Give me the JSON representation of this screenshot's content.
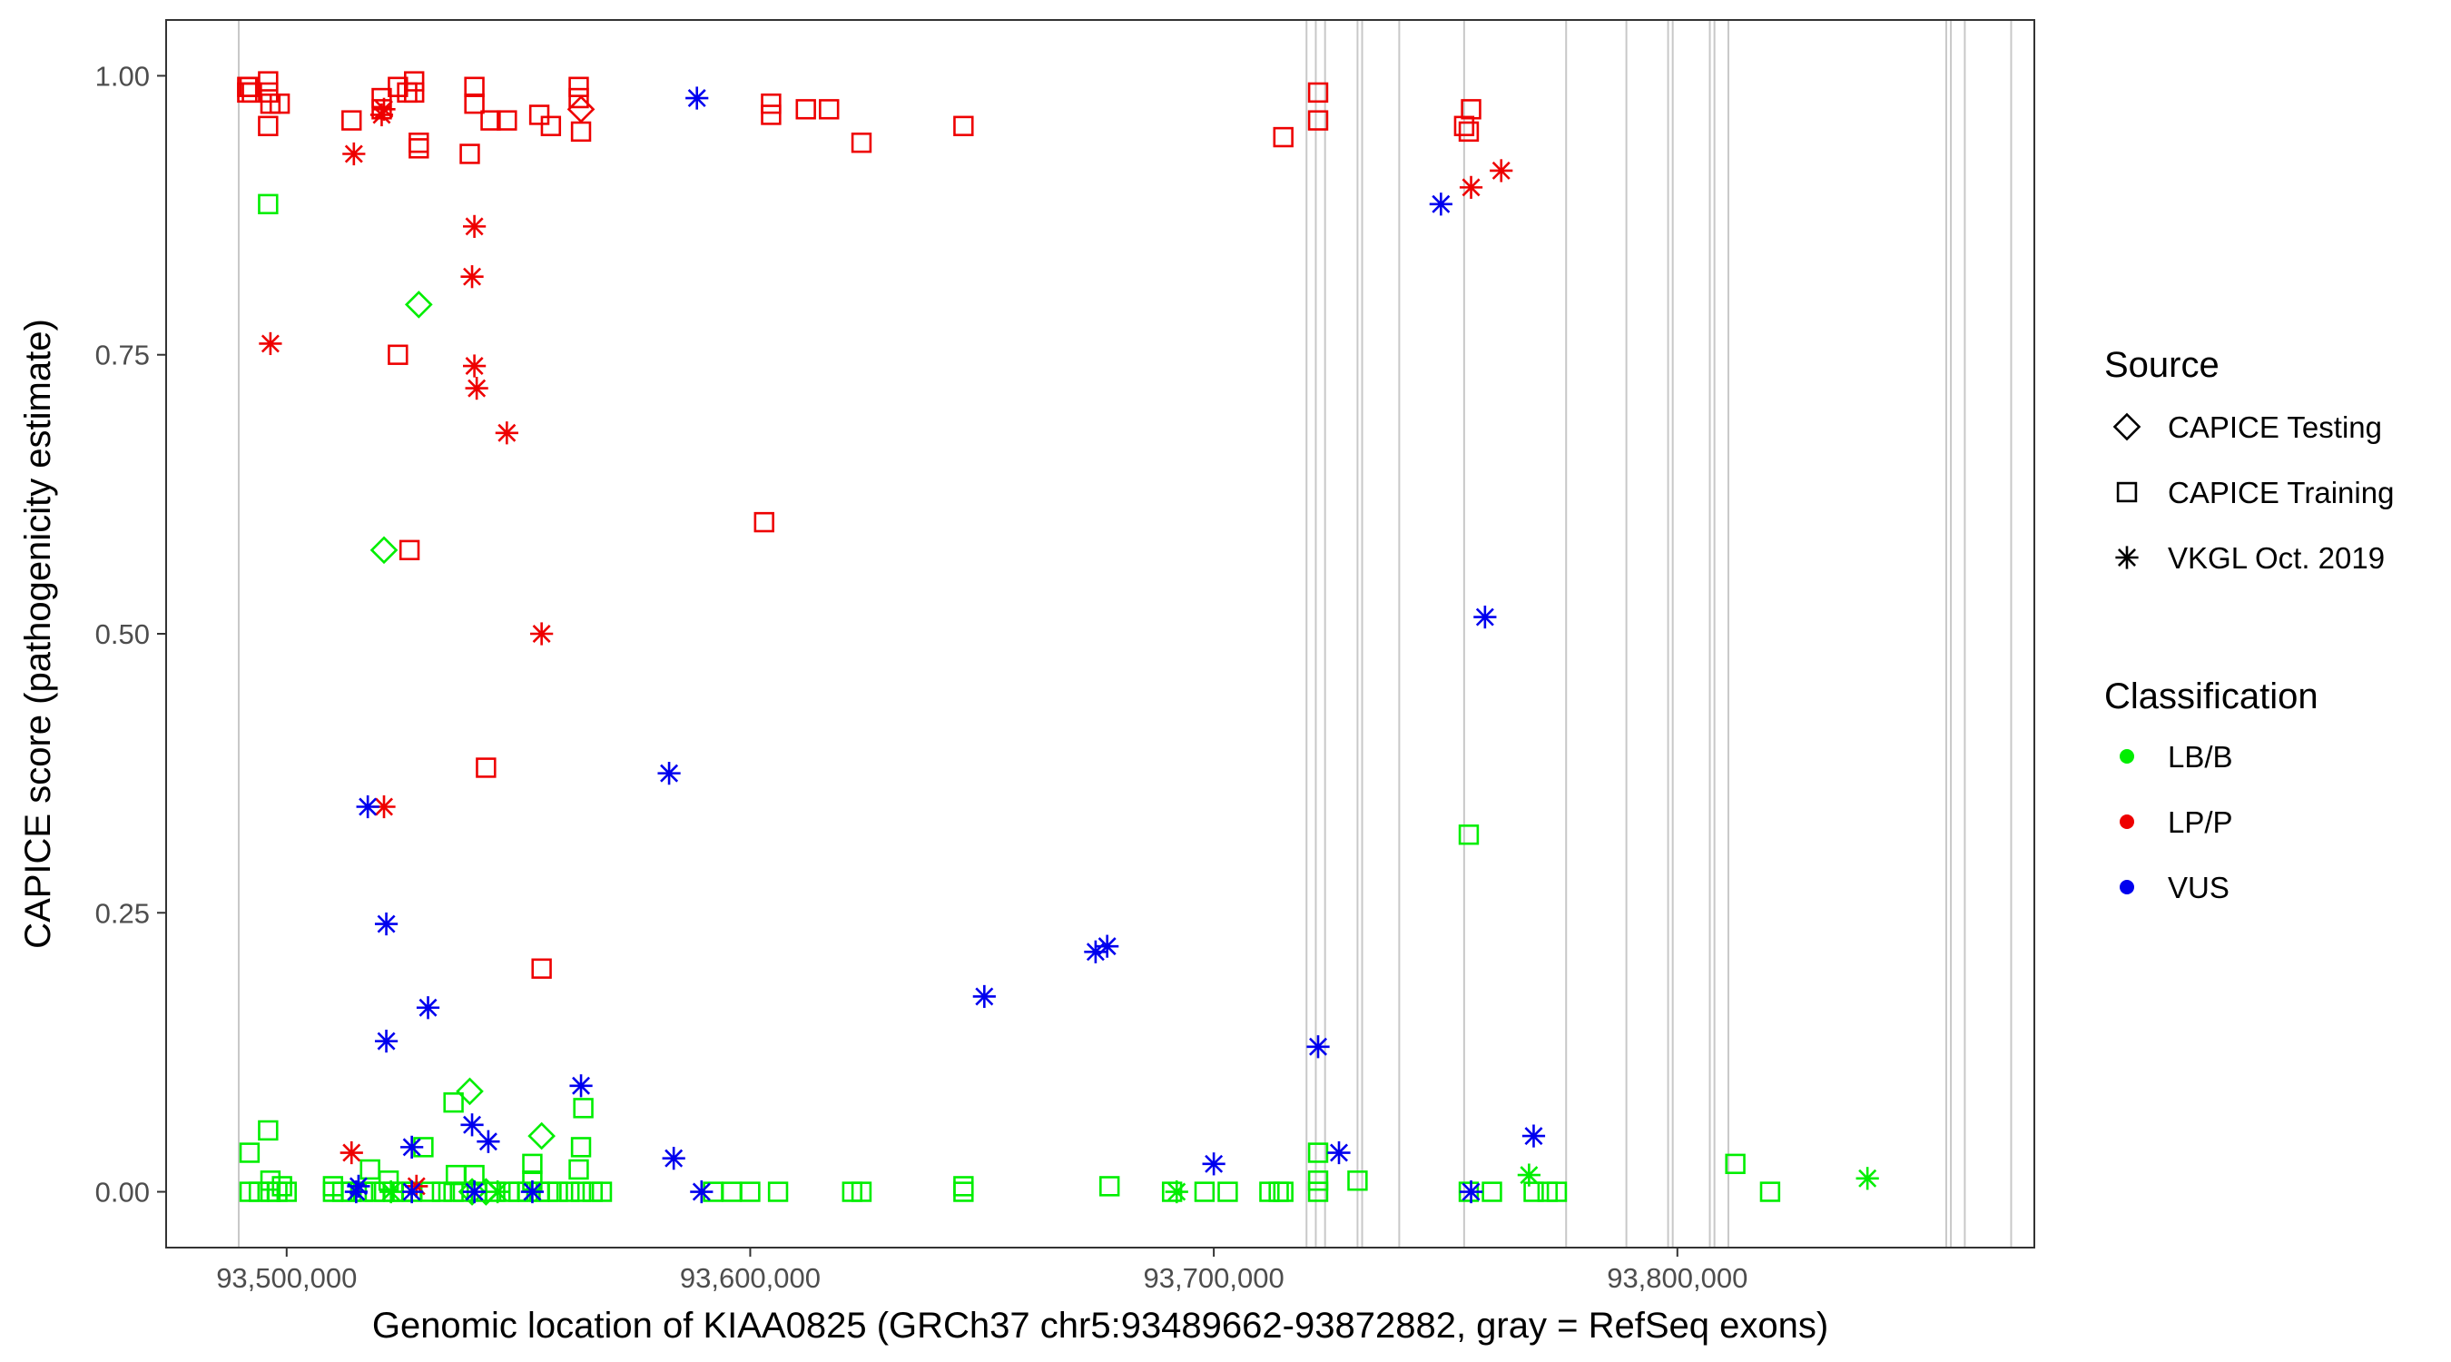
{
  "chart_data": {
    "type": "scatter",
    "xlabel": "Genomic location of KIAA0825 (GRCh37 chr5:93489662-93872882, gray = RefSeq exons)",
    "ylabel": "CAPICE score (pathogenicity estimate)",
    "xlim": [
      93474000,
      93877000
    ],
    "ylim": [
      -0.05,
      1.05
    ],
    "x_ticks": [
      {
        "value": 93500000,
        "label": "93,500,000"
      },
      {
        "value": 93600000,
        "label": "93,600,000"
      },
      {
        "value": 93700000,
        "label": "93,700,000"
      },
      {
        "value": 93800000,
        "label": "93,800,000"
      }
    ],
    "y_ticks": [
      {
        "value": 0.0,
        "label": "0.00"
      },
      {
        "value": 0.25,
        "label": "0.25"
      },
      {
        "value": 0.5,
        "label": "0.50"
      },
      {
        "value": 0.75,
        "label": "0.75"
      },
      {
        "value": 1.0,
        "label": "1.00"
      }
    ],
    "grid": false,
    "exons": [
      93489662,
      93720000,
      93722000,
      93724000,
      93731000,
      93732000,
      93740000,
      93754000,
      93776000,
      93789000,
      93798000,
      93799000,
      93807000,
      93808000,
      93811000,
      93858000,
      93859000,
      93862000,
      93872000
    ],
    "legend": {
      "placement": "right",
      "source": {
        "title": "Source",
        "items": [
          {
            "label": "CAPICE Testing",
            "shape": "diamond"
          },
          {
            "label": "CAPICE Training",
            "shape": "square"
          },
          {
            "label": "VKGL Oct. 2019",
            "shape": "asterisk"
          }
        ]
      },
      "classification": {
        "title": "Classification",
        "items": [
          {
            "label": "LB/B",
            "color": "#00ee00"
          },
          {
            "label": "LP/P",
            "color": "#ee0000"
          },
          {
            "label": "VUS",
            "color": "#0000ee"
          }
        ]
      }
    },
    "colors": {
      "LB/B": "#00ee00",
      "LP/P": "#ee0000",
      "VUS": "#0000ee",
      "exon": "#c8c8c8"
    },
    "series": [
      {
        "source": "CAPICE Training",
        "class": "LP/P",
        "points": [
          [
            93491500,
            0.99
          ],
          [
            93491500,
            0.985
          ],
          [
            93492000,
            0.99
          ],
          [
            93492500,
            0.985
          ],
          [
            93496000,
            0.995
          ],
          [
            93496000,
            0.985
          ],
          [
            93496500,
            0.975
          ],
          [
            93496000,
            0.955
          ],
          [
            93498500,
            0.975
          ],
          [
            93514000,
            0.96
          ],
          [
            93520500,
            0.98
          ],
          [
            93520500,
            0.97
          ],
          [
            93524000,
            0.99
          ],
          [
            93526000,
            0.985
          ],
          [
            93527500,
            0.995
          ],
          [
            93527500,
            0.985
          ],
          [
            93528500,
            0.94
          ],
          [
            93528500,
            0.935
          ],
          [
            93539500,
            0.93
          ],
          [
            93540500,
            0.99
          ],
          [
            93540500,
            0.975
          ],
          [
            93544000,
            0.96
          ],
          [
            93547500,
            0.96
          ],
          [
            93554500,
            0.965
          ],
          [
            93557000,
            0.955
          ],
          [
            93563000,
            0.99
          ],
          [
            93563000,
            0.98
          ],
          [
            93563500,
            0.95
          ],
          [
            93604500,
            0.975
          ],
          [
            93604500,
            0.965
          ],
          [
            93612000,
            0.97
          ],
          [
            93617000,
            0.97
          ],
          [
            93624000,
            0.94
          ],
          [
            93646000,
            0.955
          ],
          [
            93715000,
            0.945
          ],
          [
            93722500,
            0.985
          ],
          [
            93722500,
            0.96
          ],
          [
            93754000,
            0.955
          ],
          [
            93755500,
            0.97
          ],
          [
            93755000,
            0.95
          ],
          [
            93524000,
            0.75
          ],
          [
            93526500,
            0.575
          ],
          [
            93603000,
            0.6
          ],
          [
            93543000,
            0.38
          ],
          [
            93555000,
            0.2
          ]
        ]
      },
      {
        "source": "CAPICE Testing",
        "class": "LP/P",
        "points": [
          [
            93563500,
            0.97
          ]
        ]
      },
      {
        "source": "CAPICE Testing",
        "class": "LB/B",
        "points": [
          [
            93528500,
            0.795
          ],
          [
            93521000,
            0.575
          ],
          [
            93539500,
            0.09
          ],
          [
            93555000,
            0.05
          ],
          [
            93540000,
            0.0
          ],
          [
            93543000,
            0.0
          ]
        ]
      },
      {
        "source": "CAPICE Training",
        "class": "LB/B",
        "points": [
          [
            93496000,
            0.885
          ],
          [
            93755000,
            0.32
          ],
          [
            93492000,
            0.035
          ],
          [
            93496000,
            0.055
          ],
          [
            93496500,
            0.01
          ],
          [
            93499000,
            0.005
          ],
          [
            93510000,
            0.005
          ],
          [
            93518000,
            0.02
          ],
          [
            93522000,
            0.01
          ],
          [
            93529500,
            0.04
          ],
          [
            93536000,
            0.08
          ],
          [
            93536500,
            0.015
          ],
          [
            93540500,
            0.015
          ],
          [
            93553000,
            0.025
          ],
          [
            93553000,
            0.01
          ],
          [
            93563500,
            0.04
          ],
          [
            93564000,
            0.075
          ],
          [
            93563000,
            0.02
          ],
          [
            93722500,
            0.035
          ],
          [
            93722500,
            0.01
          ],
          [
            93731000,
            0.01
          ],
          [
            93812500,
            0.025
          ],
          [
            93646000,
            0.005
          ],
          [
            93677500,
            0.005
          ],
          [
            93492000,
            0.0
          ],
          [
            93494000,
            0.0
          ],
          [
            93496500,
            0.0
          ],
          [
            93498000,
            0.0
          ],
          [
            93500000,
            0.0
          ],
          [
            93510000,
            0.0
          ],
          [
            93512000,
            0.0
          ],
          [
            93514000,
            0.0
          ],
          [
            93516500,
            0.0
          ],
          [
            93519000,
            0.0
          ],
          [
            93521000,
            0.0
          ],
          [
            93523000,
            0.0
          ],
          [
            93525000,
            0.0
          ],
          [
            93527000,
            0.0
          ],
          [
            93531000,
            0.0
          ],
          [
            93533500,
            0.0
          ],
          [
            93536000,
            0.0
          ],
          [
            93538000,
            0.0
          ],
          [
            93541000,
            0.0
          ],
          [
            93545000,
            0.0
          ],
          [
            93548000,
            0.0
          ],
          [
            93550000,
            0.0
          ],
          [
            93552000,
            0.0
          ],
          [
            93554500,
            0.0
          ],
          [
            93556500,
            0.0
          ],
          [
            93558500,
            0.0
          ],
          [
            93561000,
            0.0
          ],
          [
            93563500,
            0.0
          ],
          [
            93566000,
            0.0
          ],
          [
            93568000,
            0.0
          ],
          [
            93592000,
            0.0
          ],
          [
            93596000,
            0.0
          ],
          [
            93600000,
            0.0
          ],
          [
            93606000,
            0.0
          ],
          [
            93622000,
            0.0
          ],
          [
            93624000,
            0.0
          ],
          [
            93646000,
            0.0
          ],
          [
            93691000,
            0.0
          ],
          [
            93698000,
            0.0
          ],
          [
            93703000,
            0.0
          ],
          [
            93712000,
            0.0
          ],
          [
            93714000,
            0.0
          ],
          [
            93715000,
            0.0
          ],
          [
            93722500,
            0.0
          ],
          [
            93755000,
            0.0
          ],
          [
            93760000,
            0.0
          ],
          [
            93769000,
            0.0
          ],
          [
            93772000,
            0.0
          ],
          [
            93774000,
            0.0
          ],
          [
            93820000,
            0.0
          ]
        ]
      },
      {
        "source": "VKGL Oct. 2019",
        "class": "LP/P",
        "points": [
          [
            93514500,
            0.93
          ],
          [
            93520500,
            0.965
          ],
          [
            93521000,
            0.97
          ],
          [
            93496500,
            0.76
          ],
          [
            93540500,
            0.865
          ],
          [
            93540000,
            0.82
          ],
          [
            93540500,
            0.74
          ],
          [
            93541000,
            0.72
          ],
          [
            93547500,
            0.68
          ],
          [
            93555000,
            0.5
          ],
          [
            93521000,
            0.345
          ],
          [
            93755500,
            0.9
          ],
          [
            93762000,
            0.915
          ],
          [
            93514000,
            0.035
          ],
          [
            93528000,
            0.005
          ]
        ]
      },
      {
        "source": "VKGL Oct. 2019",
        "class": "VUS",
        "points": [
          [
            93588500,
            0.98
          ],
          [
            93749000,
            0.885
          ],
          [
            93517500,
            0.345
          ],
          [
            93582500,
            0.375
          ],
          [
            93758500,
            0.515
          ],
          [
            93521500,
            0.24
          ],
          [
            93650500,
            0.175
          ],
          [
            93674500,
            0.215
          ],
          [
            93677000,
            0.22
          ],
          [
            93530500,
            0.165
          ],
          [
            93521500,
            0.135
          ],
          [
            93722500,
            0.13
          ],
          [
            93563500,
            0.095
          ],
          [
            93540000,
            0.06
          ],
          [
            93543500,
            0.045
          ],
          [
            93527000,
            0.04
          ],
          [
            93583500,
            0.03
          ],
          [
            93727000,
            0.035
          ],
          [
            93700000,
            0.025
          ],
          [
            93769000,
            0.05
          ],
          [
            93515000,
            0.0
          ],
          [
            93515500,
            0.005
          ],
          [
            93527000,
            0.0
          ],
          [
            93540500,
            0.0
          ],
          [
            93553000,
            0.0
          ],
          [
            93589500,
            0.0
          ],
          [
            93755500,
            0.0
          ]
        ]
      },
      {
        "source": "VKGL Oct. 2019",
        "class": "LB/B",
        "points": [
          [
            93692000,
            0.0
          ],
          [
            93768000,
            0.015
          ],
          [
            93841000,
            0.012
          ],
          [
            93522500,
            0.0
          ],
          [
            93545500,
            0.0
          ]
        ]
      }
    ]
  }
}
